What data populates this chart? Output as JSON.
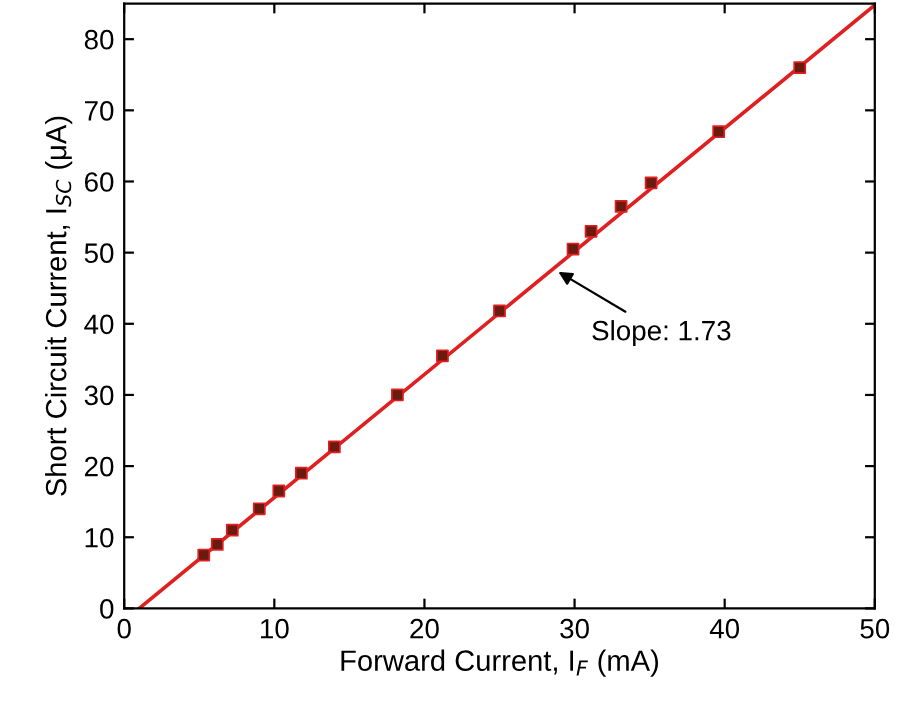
{
  "chart_data": {
    "type": "scatter",
    "xlabel": "Forward Current, I$_{F}$ (mA)",
    "ylabel": "Short Circuit Current, I$_{SC}$ (μA)",
    "series": [
      {
        "color": "#6b1a10",
        "marker": "square",
        "x": [
          5.3,
          6.2,
          7.2,
          9.0,
          10.3,
          11.8,
          14.0,
          18.2,
          21.2,
          25.0,
          29.9,
          31.1,
          33.1,
          35.1,
          39.6,
          45.0
        ],
        "values": [
          7.5,
          9.0,
          11.0,
          14.0,
          16.5,
          19.0,
          22.7,
          30.0,
          35.5,
          41.8,
          50.5,
          53.0,
          56.5,
          59.8,
          67.0,
          76.0
        ]
      },
      {
        "type": "line",
        "color": "#e02020",
        "marker": "none",
        "line_style": "solid",
        "x": [
          1,
          50
        ],
        "values": [
          0,
          84.8
        ]
      }
    ],
    "annotations": [
      {
        "text": "Slope: 1.73",
        "x": 28.6,
        "y": 47.7
      }
    ],
    "xlim": [
      0,
      50
    ],
    "xticks": [
      0,
      10,
      20,
      30,
      40,
      50
    ],
    "ylim": [
      0,
      85
    ],
    "yticks": [
      0,
      10,
      20,
      30,
      40,
      50,
      60,
      70,
      80
    ],
    "grid": false
  }
}
